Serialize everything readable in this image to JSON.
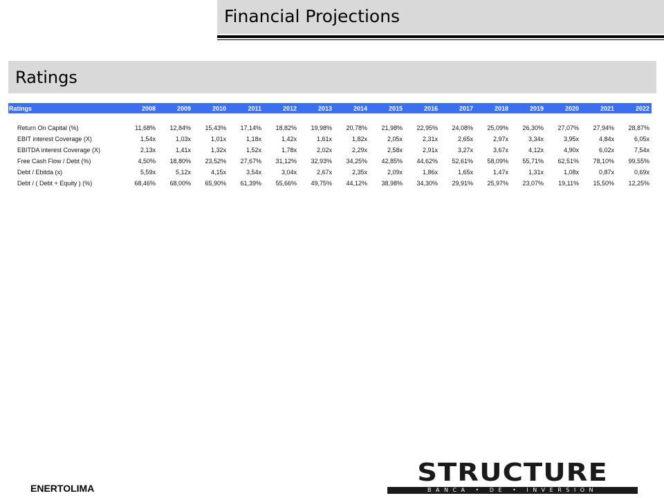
{
  "header": {
    "title": "Financial Projections"
  },
  "section": {
    "title": "Ratings"
  },
  "table": {
    "columns": [
      "Ratings",
      "2008",
      "2009",
      "2010",
      "2011",
      "2012",
      "2013",
      "2014",
      "2015",
      "2016",
      "2017",
      "2018",
      "2019",
      "2020",
      "2021",
      "2022"
    ],
    "rows": [
      {
        "label": "Return On Capital (%)",
        "values": [
          "11,68%",
          "12,84%",
          "15,43%",
          "17,14%",
          "18,82%",
          "19,98%",
          "20,78%",
          "21,98%",
          "22,95%",
          "24,08%",
          "25,09%",
          "26,30%",
          "27,07%",
          "27,94%",
          "28,87%"
        ]
      },
      {
        "label": "EBIT interest Coverage (X)",
        "values": [
          "1,54x",
          "1,03x",
          "1,01x",
          "1,18x",
          "1,42x",
          "1,61x",
          "1,82x",
          "2,05x",
          "2,31x",
          "2,65x",
          "2,97x",
          "3,34x",
          "3,95x",
          "4,84x",
          "6,05x"
        ]
      },
      {
        "label": "EBITDA interest Coverage (X)",
        "values": [
          "2,13x",
          "1,41x",
          "1,32x",
          "1,52x",
          "1,78x",
          "2,02x",
          "2,29x",
          "2,58x",
          "2,91x",
          "3,27x",
          "3,67x",
          "4,12x",
          "4,90x",
          "6,02x",
          "7,54x"
        ]
      },
      {
        "label": "Free Cash Flow / Debt (%)",
        "values": [
          "4,50%",
          "18,80%",
          "23,52%",
          "27,67%",
          "31,12%",
          "32,93%",
          "34,25%",
          "42,85%",
          "44,62%",
          "52,61%",
          "58,09%",
          "55,71%",
          "62,51%",
          "78,10%",
          "99,55%"
        ]
      },
      {
        "label": "Debt / Ebitda (x)",
        "values": [
          "5,59x",
          "5,12x",
          "4,15x",
          "3,54x",
          "3,04x",
          "2,67x",
          "2,35x",
          "2,09x",
          "1,86x",
          "1,65x",
          "1,47x",
          "1,31x",
          "1,08x",
          "0,87x",
          "0,69x"
        ]
      },
      {
        "label": "Debt / ( Debt + Equity ) (%)",
        "values": [
          "68,46%",
          "68,00%",
          "65,90%",
          "61,39%",
          "55,66%",
          "49,75%",
          "44,12%",
          "38,98%",
          "34,30%",
          "29,91%",
          "25,97%",
          "23,07%",
          "19,11%",
          "15,50%",
          "12,25%"
        ]
      }
    ]
  },
  "footer": {
    "company": "ENERTOLIMA",
    "logo_text": "STRUCTURE",
    "logo_tagline": "BANCA • DE • INVERSION"
  },
  "colors": {
    "table_header_bg": "#3c6ff0",
    "title_bar_bg": "#d9d9d9"
  }
}
